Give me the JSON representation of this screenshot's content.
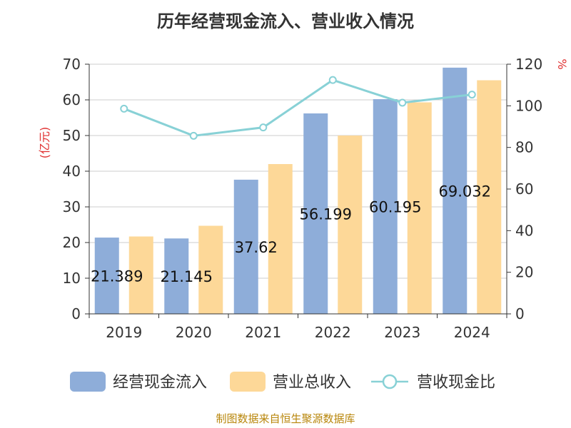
{
  "chart_data": {
    "type": "bar",
    "title": "历年经营现金流入、营业收入情况",
    "categories": [
      "2019",
      "2020",
      "2021",
      "2022",
      "2023",
      "2024"
    ],
    "series": [
      {
        "name": "经营现金流入",
        "axis": "left",
        "type": "bar",
        "color": "#8eadd9",
        "values": [
          21.389,
          21.145,
          37.62,
          56.199,
          60.195,
          69.032
        ],
        "data_labels": [
          "21.389",
          "21.145",
          "37.62",
          "56.199",
          "60.195",
          "69.032"
        ]
      },
      {
        "name": "营业总收入",
        "axis": "left",
        "type": "bar",
        "color": "#fdd898",
        "values": [
          21.7,
          24.7,
          42.0,
          50.0,
          59.3,
          65.5
        ]
      },
      {
        "name": "营收现金比",
        "axis": "right",
        "type": "line",
        "color": "#88d1d6",
        "values": [
          98.6,
          85.6,
          89.6,
          112.4,
          101.5,
          105.4
        ]
      }
    ],
    "y_left": {
      "unit_label": "(亿元)",
      "min": 0,
      "max": 70,
      "ticks": [
        0,
        10,
        20,
        30,
        40,
        50,
        60,
        70
      ]
    },
    "y_right": {
      "unit_label": "%",
      "min": 0,
      "max": 120,
      "ticks": [
        0,
        20,
        40,
        60,
        80,
        100,
        120
      ]
    },
    "grid": true,
    "legend_position": "bottom",
    "source": "制图数据来自恒生聚源数据库"
  }
}
